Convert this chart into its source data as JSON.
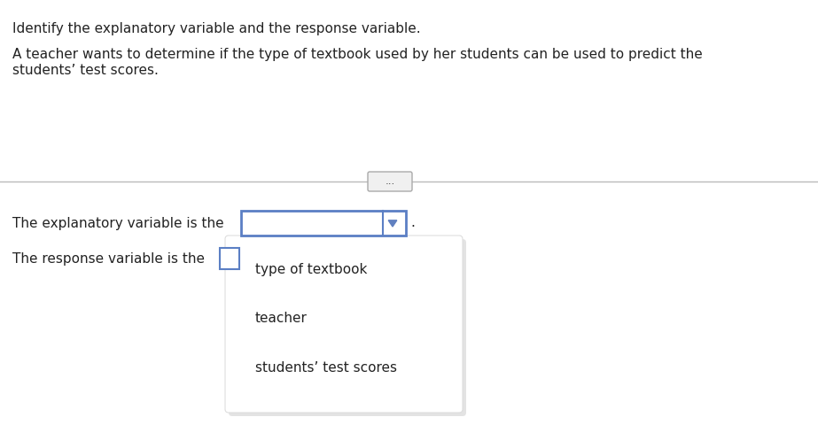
{
  "background_color": "#ffffff",
  "title_line1": "Identify the explanatory variable and the response variable.",
  "title_line2": "A teacher wants to determine if the type of textbook used by her students can be used to predict the",
  "title_line3": "students’ test scores.",
  "label1": "The explanatory variable is the",
  "label2": "The response variable is the",
  "dropdown_options": [
    "type of textbook",
    "teacher",
    "students’ test scores"
  ],
  "dots_label": "...",
  "text_fontsize": 11.0,
  "small_fontsize": 8.5,
  "dropdown_box_color": "#5b7fc4",
  "dropdown_fill": "#ffffff",
  "dropdown_arrow_color": "#6080c0",
  "menu_bg_color": "#ffffff",
  "menu_border_color": "#dddddd",
  "menu_shadow_color": "#c8c8c8",
  "text_color": "#222222",
  "divider_color": "#bbbbbb",
  "pill_edge_color": "#aaaaaa",
  "pill_face_color": "#f0f0f0",
  "pill_text_color": "#555555"
}
